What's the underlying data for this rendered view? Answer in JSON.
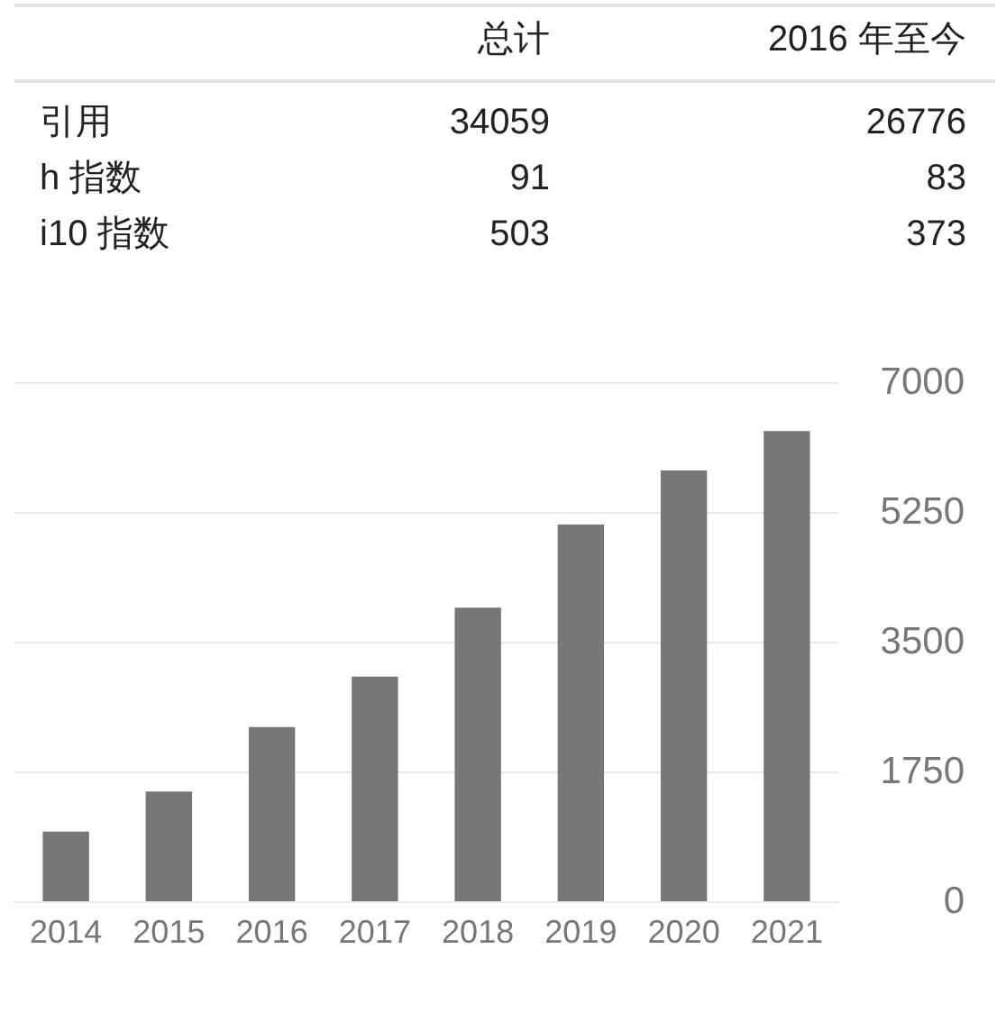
{
  "chart_data": [
    {
      "type": "other",
      "categories": [
        "引用",
        "h 指数",
        "i10 指数"
      ],
      "series": [
        {
          "name": "总计",
          "values": [
            34059,
            91,
            503
          ]
        },
        {
          "name": "2016 年至今",
          "values": [
            26776,
            83,
            373
          ]
        }
      ],
      "data_labels": true
    },
    {
      "type": "bar",
      "categories": [
        "2014",
        "2015",
        "2016",
        "2017",
        "2018",
        "2019",
        "2020",
        "2021"
      ],
      "values": [
        940,
        1480,
        2350,
        3030,
        3960,
        5080,
        5810,
        6340
      ],
      "color": "#777777",
      "ylim": [
        0,
        7000
      ],
      "yticks": [
        0,
        1750,
        3500,
        5250,
        7000
      ],
      "grid": "y"
    }
  ]
}
